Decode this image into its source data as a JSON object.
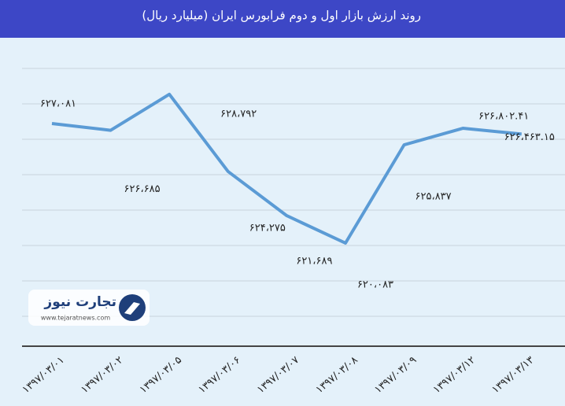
{
  "chart_data": {
    "type": "line",
    "title": "روند ارزش بازار اول و دوم فرابورس  ایران (میلیارد ریال)",
    "categories": [
      "۱۳۹۷/۰۳/۰۱",
      "۱۳۹۷/۰۳/۰۲",
      "۱۳۹۷/۰۳/۰۵",
      "۱۳۹۷/۰۳/۰۶",
      "۱۳۹۷/۰۳/۰۷",
      "۱۳۹۷/۰۳/۰۸",
      "۱۳۹۷/۰۳/۰۹",
      "۱۳۹۷/۰۳/۱۲",
      "۱۳۹۷/۰۳/۱۳"
    ],
    "values": [
      627081,
      626685,
      628792,
      624275,
      621689,
      620083,
      625837,
      626802.41,
      626463.15
    ],
    "value_labels": [
      "۶۲۷،۰۸۱",
      "۶۲۶،۶۸۵",
      "۶۲۸،۷۹۲",
      "۶۲۴،۲۷۵",
      "۶۲۱،۶۸۹",
      "۶۲۰،۰۸۳",
      "۶۲۵،۸۳۷",
      "۶۲۶،۸۰۲.۴۱",
      "۶۲۶،۴۶۳.۱۵"
    ],
    "color": "#5b9bd5",
    "ylim": [
      614050,
      632100
    ],
    "watermark": "تجارت نیوز",
    "watermark_url": "www.tejaratnews.com"
  }
}
